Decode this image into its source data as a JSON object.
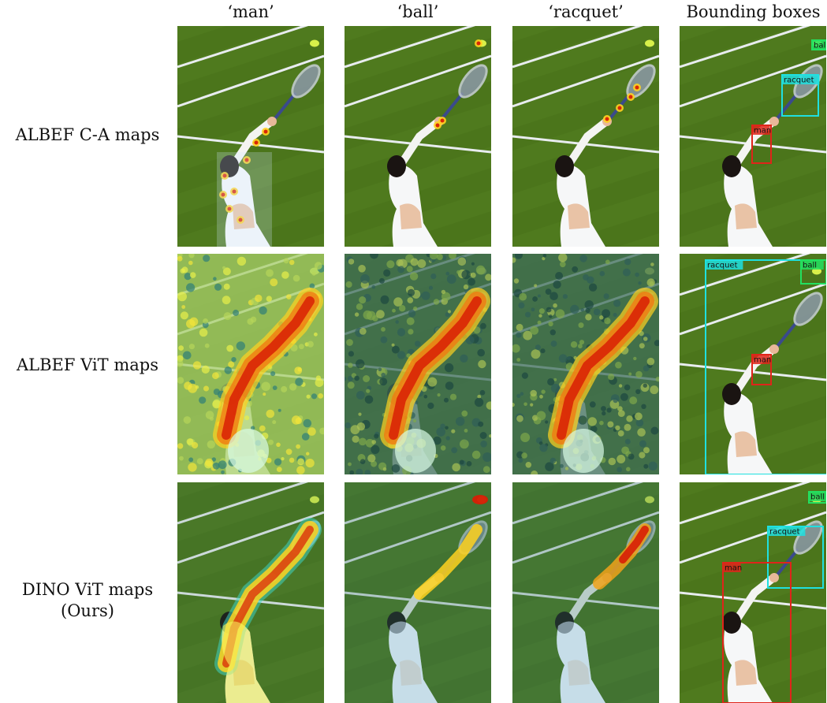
{
  "columns": [
    "‘man’",
    "‘ball’",
    "‘racquet’",
    "Bounding boxes"
  ],
  "rows": [
    {
      "label_lines": [
        "ALBEF C-A maps"
      ],
      "map_style": "ca"
    },
    {
      "label_lines": [
        "ALBEF ViT maps"
      ],
      "map_style": "vit"
    },
    {
      "label_lines": [
        "DINO ViT maps",
        "(Ours)"
      ],
      "map_style": "dino"
    }
  ],
  "box_labels": {
    "man": "man",
    "ball": "ball",
    "racquet": "racquet"
  },
  "colors": {
    "grass": "#4f7a1e",
    "court_line": "#e8ecef",
    "man_box": "#e0241a",
    "ball_box": "#22e060",
    "racquet_box": "#1fe0e0",
    "heat_hot": "#d81e05",
    "heat_warm": "#ffd21f",
    "heat_cool": "#2f8f8a"
  }
}
